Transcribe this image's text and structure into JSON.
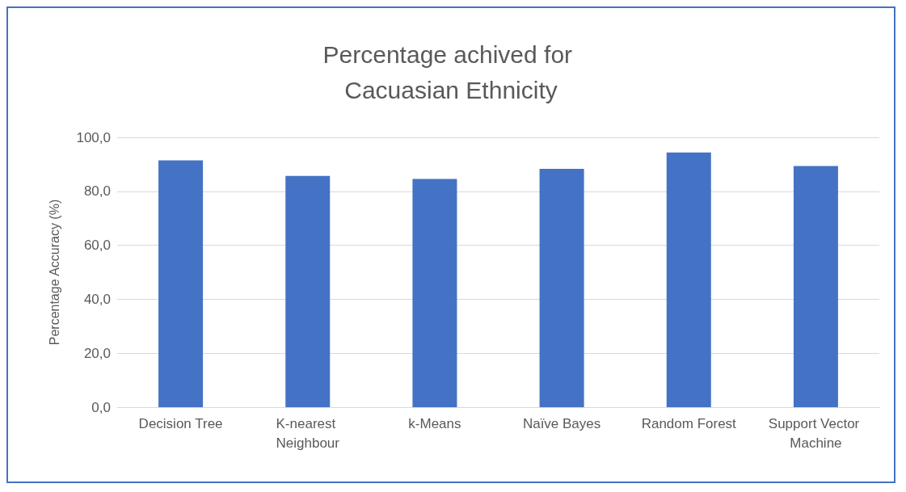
{
  "chart_data": {
    "type": "bar",
    "title": "Percentage achived for Cacuasian Ethnicity",
    "ylabel": "Percentage Accuracy (%)",
    "categories": [
      "Decision Tree",
      "K-nearest Neighbour",
      "k-Means",
      "Naïve Bayes",
      "Random Forest",
      "Support Vector Machine"
    ],
    "values": [
      91.5,
      85.7,
      84.6,
      88.3,
      94.4,
      89.4
    ],
    "color": "#4472c4",
    "ylim": [
      0,
      100
    ],
    "yticks": [
      {
        "value": 0,
        "label": "0,0"
      },
      {
        "value": 20,
        "label": "20,0"
      },
      {
        "value": 40,
        "label": "40,0"
      },
      {
        "value": 60,
        "label": "60,0"
      },
      {
        "value": 80,
        "label": "80,0"
      },
      {
        "value": 100,
        "label": "100,0"
      }
    ],
    "grid": "y"
  }
}
